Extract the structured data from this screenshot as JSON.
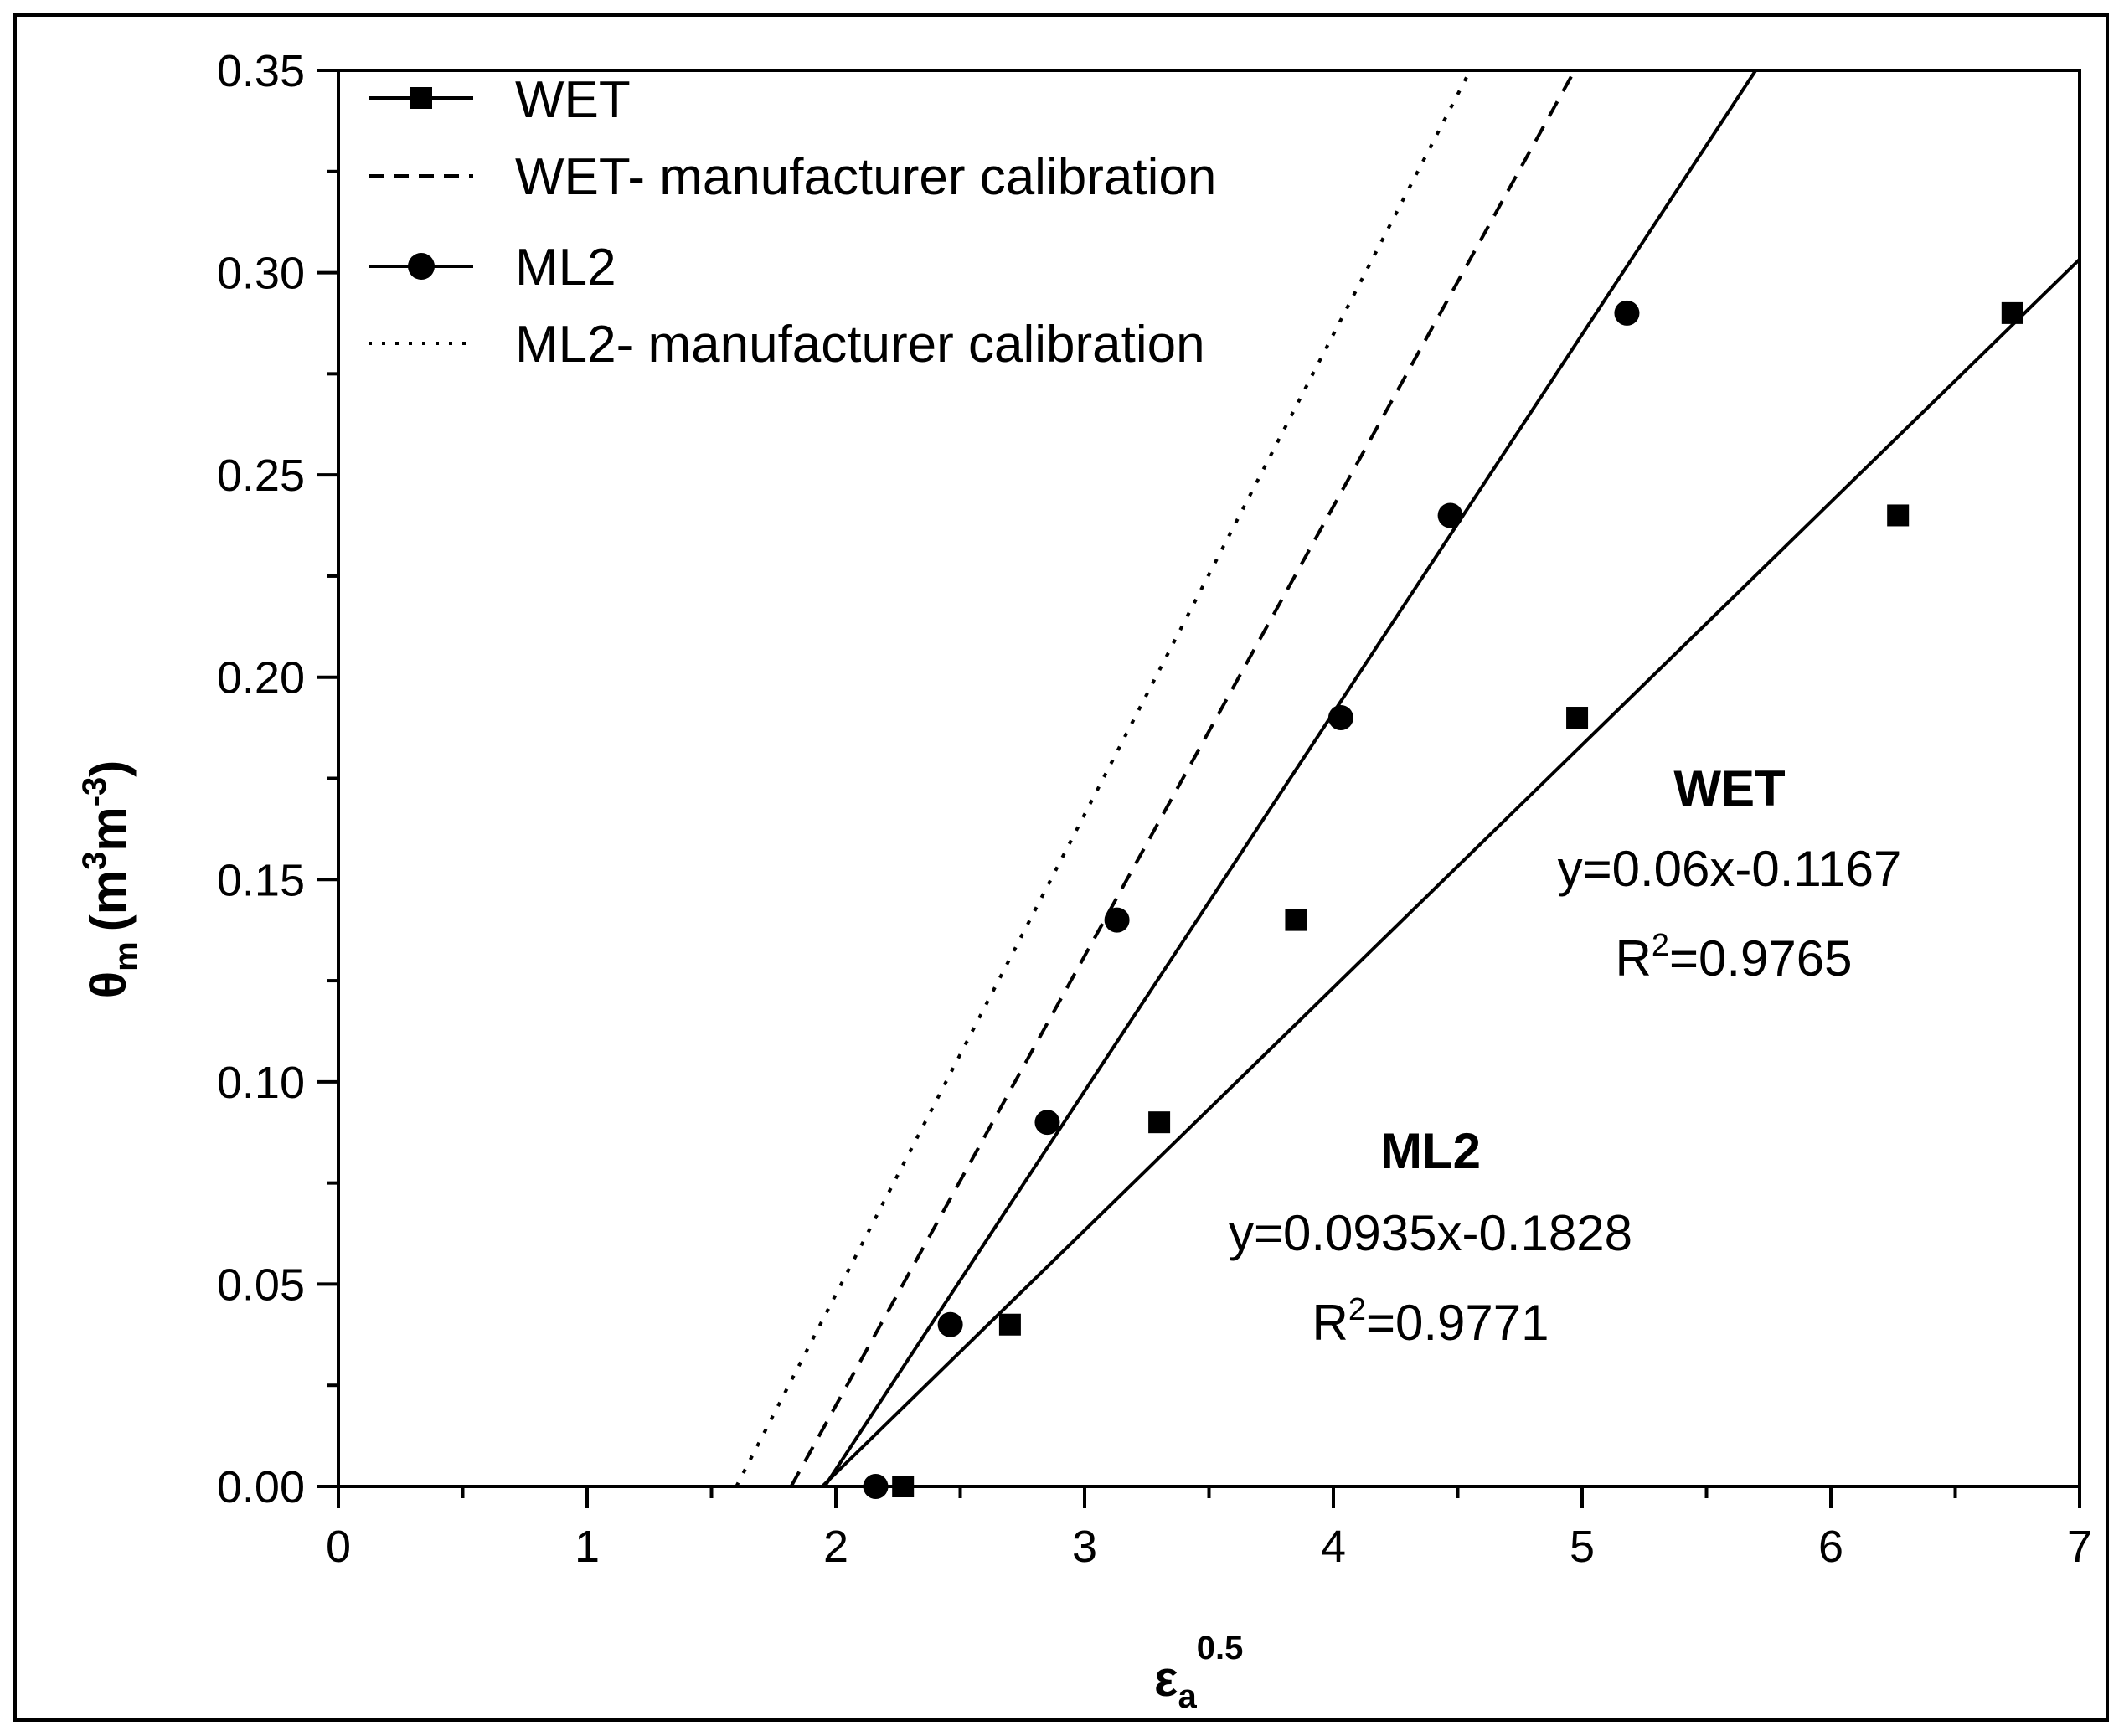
{
  "chart_data": {
    "type": "scatter",
    "title": "",
    "xlabel": "ε",
    "xlabel_sub": "a",
    "xlabel_sup": "0.5",
    "ylabel": "θ",
    "ylabel_sub": "m",
    "ylabel_open": "(m",
    "ylabel_sup1": "3",
    "ylabel_mid": "m",
    "ylabel_sup2": "-3",
    "ylabel_close": ")",
    "xlim": [
      0,
      7
    ],
    "ylim": [
      0,
      0.35
    ],
    "x_ticks": [
      0,
      1,
      2,
      3,
      4,
      5,
      6,
      7
    ],
    "x_tick_labels": [
      "0",
      "1",
      "2",
      "3",
      "4",
      "5",
      "6",
      "7"
    ],
    "y_ticks": [
      0,
      0.05,
      0.1,
      0.15,
      0.2,
      0.25,
      0.3,
      0.35
    ],
    "y_tick_labels": [
      "0.00",
      "0.05",
      "0.10",
      "0.15",
      "0.20",
      "0.25",
      "0.30",
      "0.35"
    ],
    "grid": false,
    "legend_position": "top-left",
    "series": [
      {
        "name": "WET",
        "marker": "square",
        "x": [
          2.27,
          2.7,
          3.3,
          3.85,
          4.98,
          6.27,
          6.73
        ],
        "y": [
          0.0,
          0.04,
          0.09,
          0.14,
          0.19,
          0.24,
          0.29
        ]
      },
      {
        "name": "ML2",
        "marker": "circle",
        "x": [
          2.16,
          2.46,
          2.85,
          3.13,
          4.03,
          4.47,
          5.18
        ],
        "y": [
          0.0,
          0.04,
          0.09,
          0.14,
          0.19,
          0.24,
          0.29
        ]
      }
    ],
    "lines": [
      {
        "name": "WET fit",
        "style": "solid",
        "x": [
          1.945,
          7.0
        ],
        "y": [
          0.0,
          0.3033
        ]
      },
      {
        "name": "ML2 fit",
        "style": "solid",
        "x": [
          1.955,
          5.698
        ],
        "y": [
          0.0,
          0.35
        ]
      },
      {
        "name": "WET- manufacturer calibration",
        "style": "dashed",
        "x": [
          1.82,
          4.97
        ],
        "y": [
          0.0,
          0.35
        ]
      },
      {
        "name": "ML2- manufacturer calibration",
        "style": "dotted",
        "x": [
          1.6,
          4.55
        ],
        "y": [
          0.0,
          0.35
        ]
      }
    ],
    "legend": [
      {
        "label": "WET",
        "style": "solid",
        "marker": "square"
      },
      {
        "label": "WET- manufacturer calibration",
        "style": "dashed",
        "marker": "none"
      },
      {
        "label": "ML2",
        "style": "solid",
        "marker": "circle"
      },
      {
        "label": "ML2- manufacturer calibration",
        "style": "dotted",
        "marker": "none"
      }
    ],
    "annotations": {
      "wet": {
        "title": "WET",
        "equation": "y=0.06x-0.1167",
        "r2_prefix": "R",
        "r2_sup": "2",
        "r2_value": "=0.9765"
      },
      "ml2": {
        "title": "ML2",
        "equation": "y=0.0935x-0.1828",
        "r2_prefix": "R",
        "r2_sup": "2",
        "r2_value": "=0.9771"
      }
    }
  }
}
